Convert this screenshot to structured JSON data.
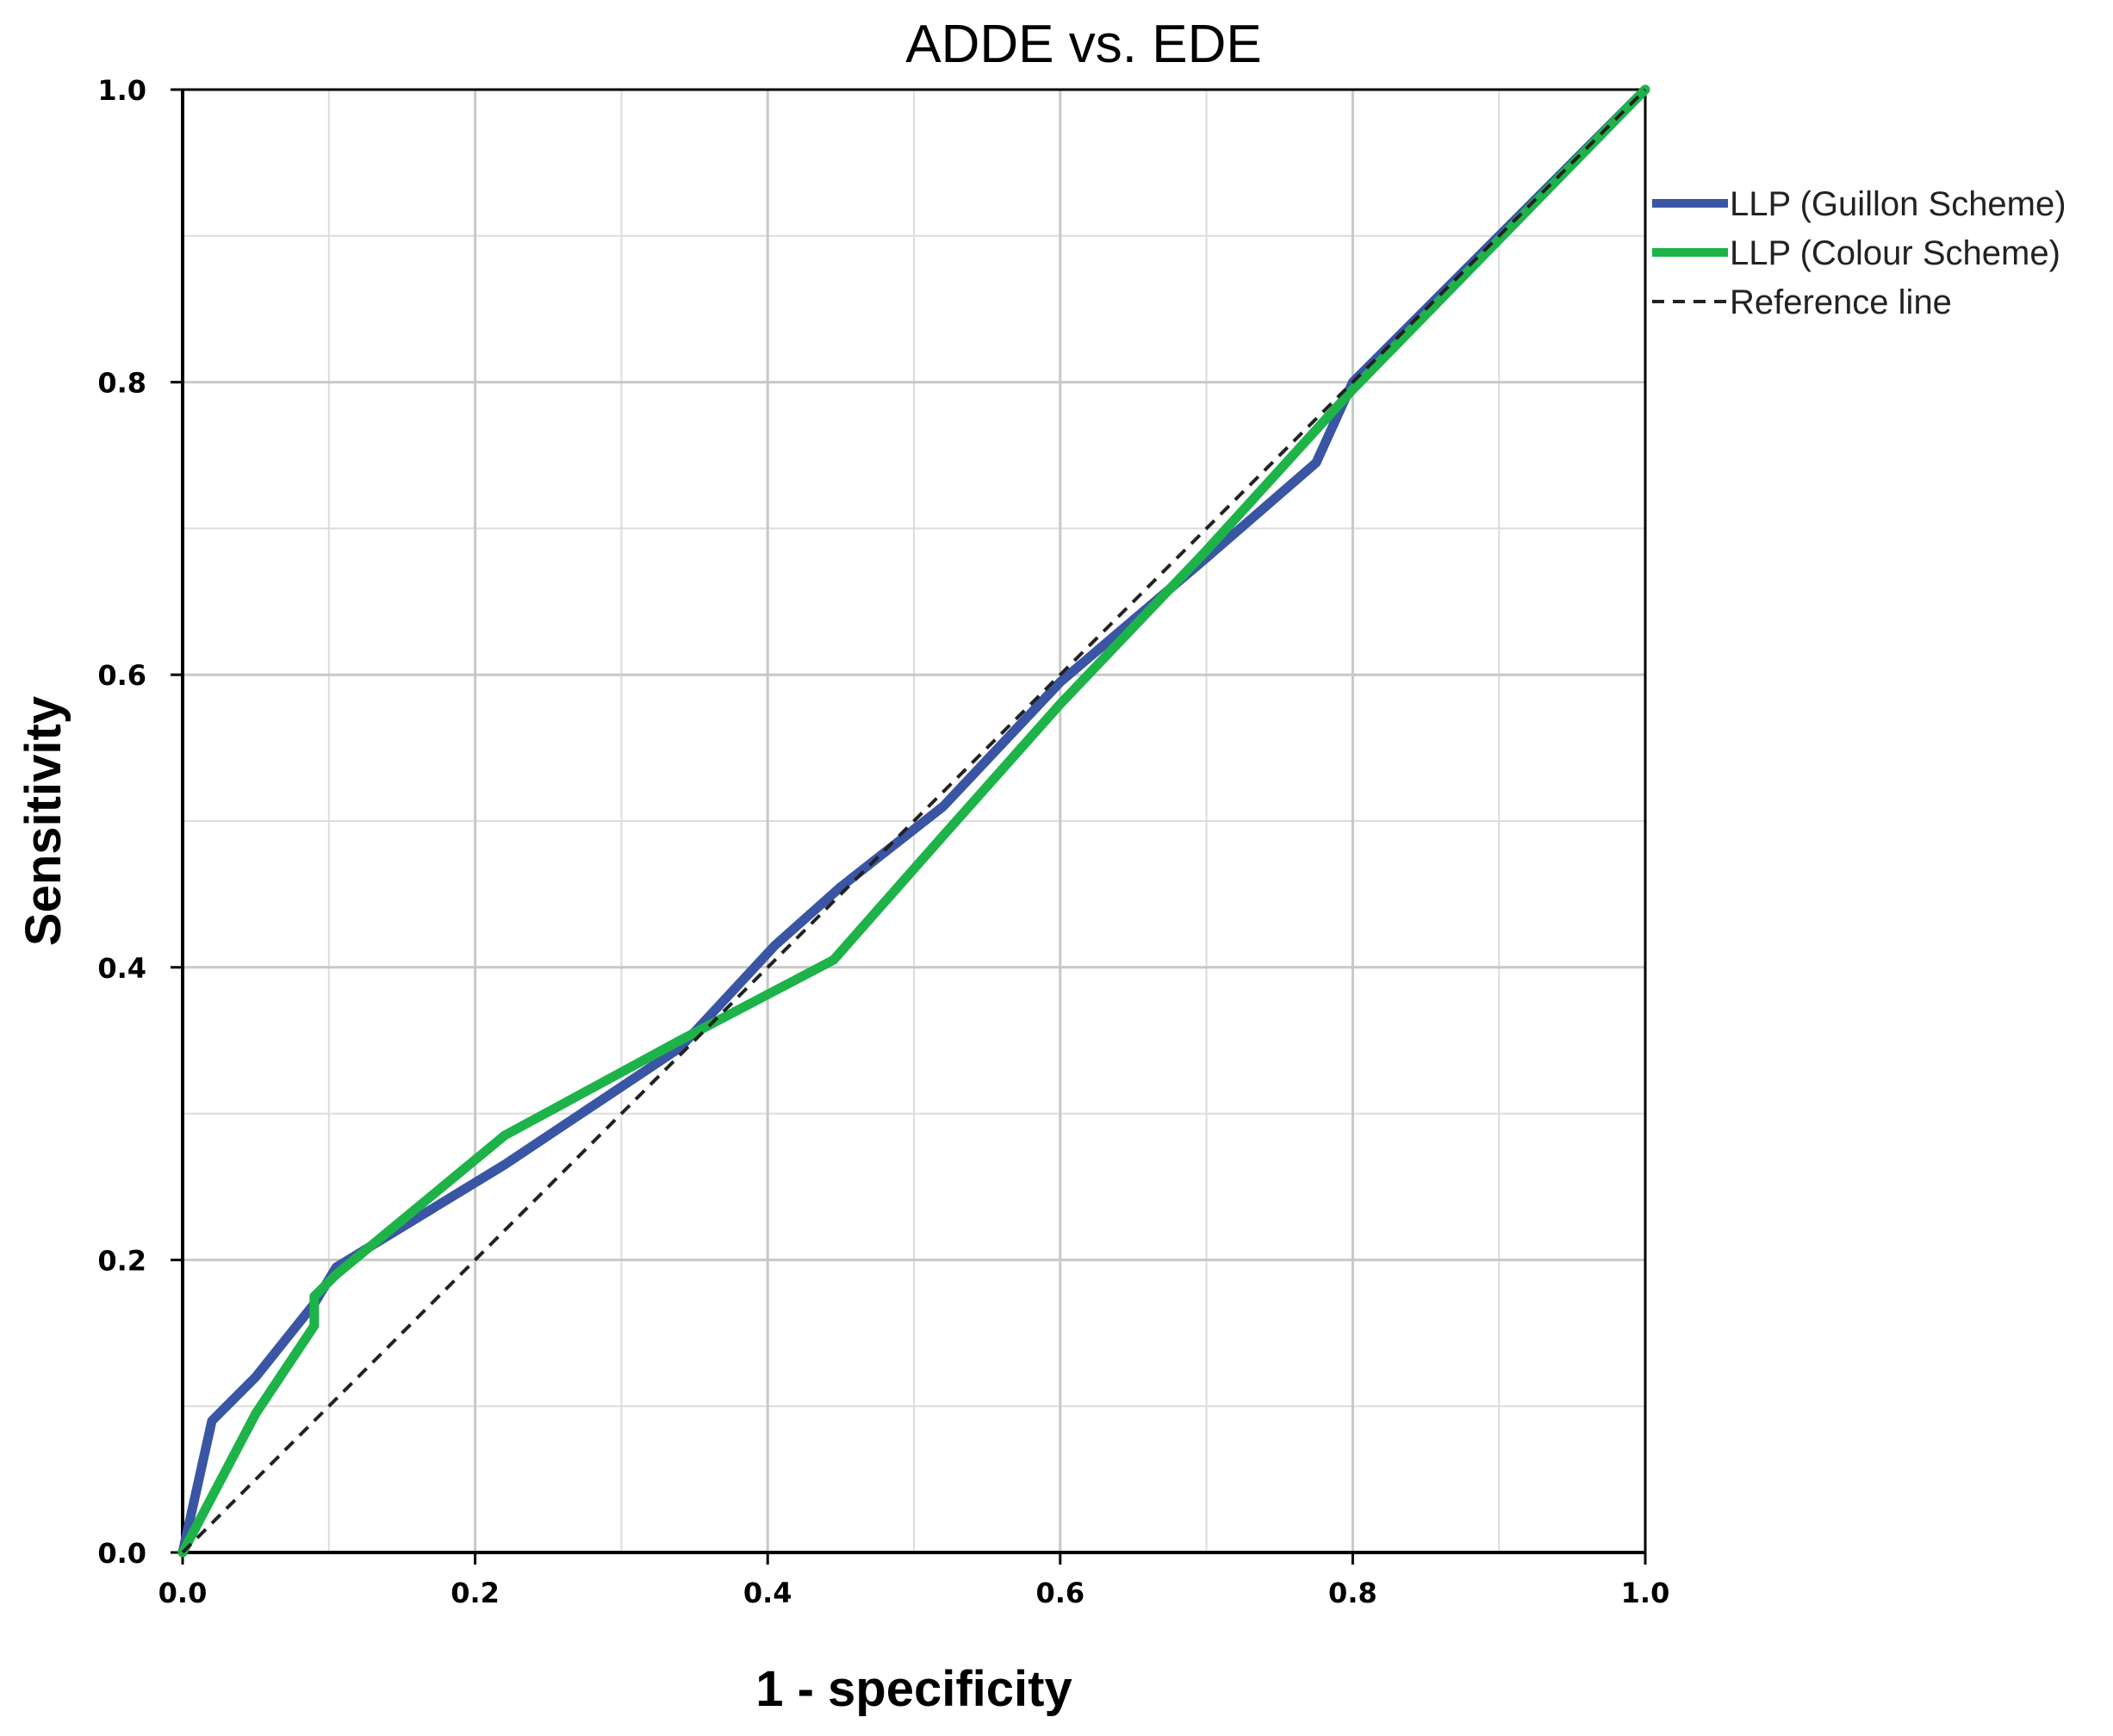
{
  "chart_data": {
    "type": "line",
    "title": "ADDE vs. EDE",
    "xlabel": "1 - specificity",
    "ylabel": "Sensitivity",
    "xlim": [
      0,
      1
    ],
    "ylim": [
      0,
      1
    ],
    "x_ticks": [
      "0.0",
      "0.2",
      "0.4",
      "0.6",
      "0.8",
      "1.0"
    ],
    "y_ticks": [
      "0.0",
      "0.2",
      "0.4",
      "0.6",
      "0.8",
      "1.0"
    ],
    "grid": true,
    "legend_position": "top-right",
    "series": [
      {
        "name": "LLP (Guillon Scheme)",
        "color": "#3a55a4",
        "style": "solid",
        "points": [
          [
            0,
            0
          ],
          [
            0.02,
            0.09
          ],
          [
            0.05,
            0.12
          ],
          [
            0.09,
            0.17
          ],
          [
            0.105,
            0.195
          ],
          [
            0.22,
            0.265
          ],
          [
            0.34,
            0.345
          ],
          [
            0.405,
            0.415
          ],
          [
            0.45,
            0.455
          ],
          [
            0.52,
            0.51
          ],
          [
            0.6,
            0.595
          ],
          [
            0.7,
            0.68
          ],
          [
            0.775,
            0.745
          ],
          [
            0.8,
            0.8
          ],
          [
            1,
            1
          ]
        ]
      },
      {
        "name": "LLP (Colour Scheme)",
        "color": "#1db349",
        "style": "solid",
        "points": [
          [
            0,
            0
          ],
          [
            0.05,
            0.095
          ],
          [
            0.09,
            0.155
          ],
          [
            0.09,
            0.175
          ],
          [
            0.105,
            0.19
          ],
          [
            0.22,
            0.285
          ],
          [
            0.34,
            0.35
          ],
          [
            0.445,
            0.405
          ],
          [
            0.52,
            0.49
          ],
          [
            0.6,
            0.58
          ],
          [
            0.7,
            0.685
          ],
          [
            0.8,
            0.795
          ],
          [
            1,
            1
          ]
        ]
      },
      {
        "name": "Reference line",
        "color": "#222222",
        "style": "dashed",
        "points": [
          [
            0,
            0
          ],
          [
            1,
            1
          ]
        ]
      }
    ]
  }
}
